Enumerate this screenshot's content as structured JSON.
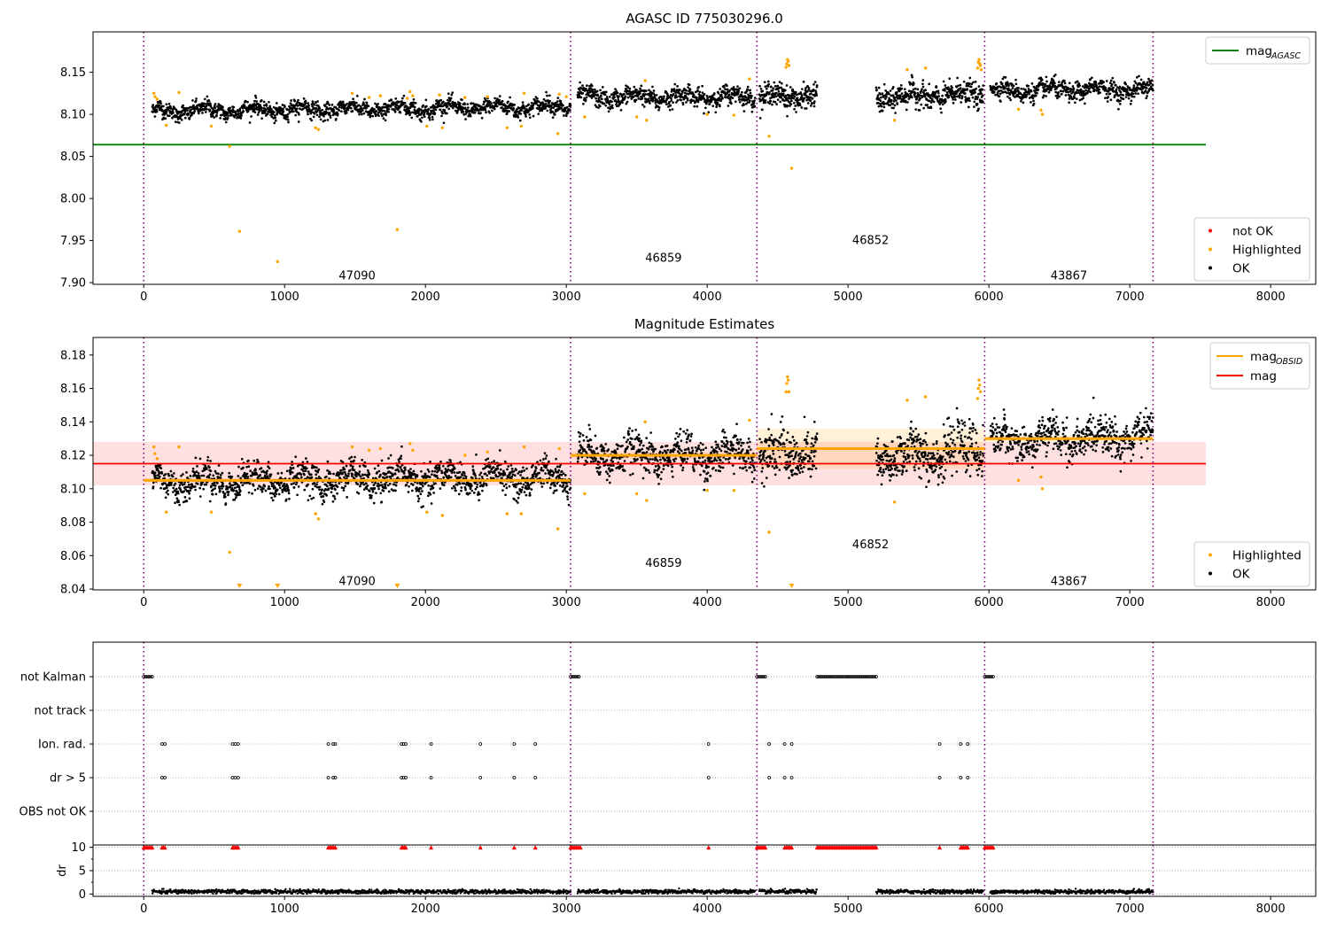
{
  "chart_data": [
    {
      "type": "scatter",
      "title": "AGASC ID 775030296.0",
      "xlabel": "",
      "ylabel": "",
      "xlim": [
        -360,
        8320
      ],
      "ylim": [
        7.898,
        8.198
      ],
      "xticks": [
        0,
        1000,
        2000,
        3000,
        4000,
        5000,
        6000,
        7000,
        8000
      ],
      "yticks": [
        7.9,
        7.95,
        8.0,
        8.05,
        8.1,
        8.15
      ],
      "ytick_labels": [
        "7.90",
        "7.95",
        "8.00",
        "8.05",
        "8.10",
        "8.15"
      ],
      "grid": false,
      "legend_upper": {
        "placement": "top-right",
        "entries": [
          {
            "label": "mag",
            "sub": "AGASC",
            "color": "#008000",
            "kind": "line"
          }
        ]
      },
      "legend_lower": {
        "placement": "bottom-right",
        "entries": [
          {
            "label": "not OK",
            "color": "#ff0000",
            "kind": "marker"
          },
          {
            "label": "Highlighted",
            "color": "#ffa500",
            "kind": "marker"
          },
          {
            "label": "OK",
            "color": "#000000",
            "kind": "marker"
          }
        ]
      },
      "agasc_mag": 8.064,
      "agasc_line_x": [
        -360,
        7540
      ],
      "obs_boundaries": [
        0,
        3030,
        4353,
        5970,
        7165
      ],
      "obs_labels": [
        {
          "text": "47090",
          "x": 1515,
          "y": 7.908
        },
        {
          "text": "46859",
          "x": 3690,
          "y": 7.929
        },
        {
          "text": "46852",
          "x": 5160,
          "y": 7.95
        },
        {
          "text": "43867",
          "x": 6568,
          "y": 7.908
        }
      ],
      "ok_segments": [
        {
          "x0": 60,
          "x1": 3030,
          "mean_start": 8.104,
          "mean_end": 8.109,
          "spread": 0.006,
          "n": 1500
        },
        {
          "x0": 3080,
          "x1": 4340,
          "mean_start": 8.12,
          "mean_end": 8.121,
          "spread": 0.007,
          "n": 650
        },
        {
          "x0": 4370,
          "x1": 4780,
          "mean_start": 8.121,
          "mean_end": 8.122,
          "spread": 0.009,
          "n": 230
        },
        {
          "x0": 5200,
          "x1": 5960,
          "mean_start": 8.12,
          "mean_end": 8.124,
          "spread": 0.009,
          "n": 420
        },
        {
          "x0": 6010,
          "x1": 7165,
          "mean_start": 8.128,
          "mean_end": 8.13,
          "spread": 0.007,
          "n": 600
        }
      ],
      "highlighted": [
        [
          72,
          8.125
        ],
        [
          80,
          8.121
        ],
        [
          95,
          8.118
        ],
        [
          160,
          8.087
        ],
        [
          250,
          8.126
        ],
        [
          480,
          8.086
        ],
        [
          610,
          8.062
        ],
        [
          680,
          7.961
        ],
        [
          950,
          7.925
        ],
        [
          1220,
          8.084
        ],
        [
          1240,
          8.082
        ],
        [
          1480,
          8.125
        ],
        [
          1600,
          8.12
        ],
        [
          1680,
          8.122
        ],
        [
          1800,
          7.963
        ],
        [
          1870,
          8.119
        ],
        [
          1890,
          8.127
        ],
        [
          1910,
          8.122
        ],
        [
          2010,
          8.086
        ],
        [
          2100,
          8.123
        ],
        [
          2120,
          8.084
        ],
        [
          2280,
          8.12
        ],
        [
          2440,
          8.121
        ],
        [
          2580,
          8.084
        ],
        [
          2680,
          8.086
        ],
        [
          2700,
          8.125
        ],
        [
          2940,
          8.077
        ],
        [
          2950,
          8.124
        ],
        [
          3000,
          8.121
        ],
        [
          3130,
          8.097
        ],
        [
          3500,
          8.097
        ],
        [
          3560,
          8.14
        ],
        [
          3570,
          8.093
        ],
        [
          4000,
          8.1
        ],
        [
          4190,
          8.099
        ],
        [
          4300,
          8.142
        ],
        [
          4440,
          8.074
        ],
        [
          4560,
          8.156
        ],
        [
          4565,
          8.16
        ],
        [
          4570,
          8.165
        ],
        [
          4575,
          8.163
        ],
        [
          4580,
          8.158
        ],
        [
          4600,
          8.036
        ],
        [
          5330,
          8.093
        ],
        [
          5420,
          8.153
        ],
        [
          5550,
          8.155
        ],
        [
          5920,
          8.155
        ],
        [
          5925,
          8.162
        ],
        [
          5930,
          8.165
        ],
        [
          5935,
          8.16
        ],
        [
          5940,
          8.158
        ],
        [
          5945,
          8.153
        ],
        [
          6210,
          8.106
        ],
        [
          6370,
          8.105
        ],
        [
          6380,
          8.1
        ]
      ]
    },
    {
      "type": "scatter",
      "title": "Magnitude Estimates",
      "xlabel": "",
      "ylabel": "",
      "xlim": [
        -360,
        8320
      ],
      "ylim": [
        8.0395,
        8.1905
      ],
      "xticks": [
        0,
        1000,
        2000,
        3000,
        4000,
        5000,
        6000,
        7000,
        8000
      ],
      "yticks": [
        8.04,
        8.06,
        8.08,
        8.1,
        8.12,
        8.14,
        8.16,
        8.18
      ],
      "ytick_labels": [
        "8.04",
        "8.06",
        "8.08",
        "8.10",
        "8.12",
        "8.14",
        "8.16",
        "8.18"
      ],
      "grid": false,
      "legend_upper": {
        "placement": "top-right",
        "entries": [
          {
            "label": "mag",
            "sub": "OBSID",
            "color": "#ffa500",
            "kind": "line"
          },
          {
            "label": "mag",
            "sub": "",
            "color": "#ff0000",
            "kind": "line"
          }
        ]
      },
      "legend_lower": {
        "placement": "bottom-right",
        "entries": [
          {
            "label": "Highlighted",
            "color": "#ffa500",
            "kind": "marker"
          },
          {
            "label": "OK",
            "color": "#000000",
            "kind": "marker"
          }
        ]
      },
      "mag_mean": 8.115,
      "mag_band": [
        8.102,
        8.128
      ],
      "mag_line_x": [
        -360,
        7540
      ],
      "obsid_mags": [
        {
          "x0": 0,
          "x1": 3030,
          "mag": 8.105,
          "band": [
            8.104,
            8.106
          ]
        },
        {
          "x0": 3030,
          "x1": 4353,
          "mag": 8.12,
          "band": [
            8.118,
            8.122
          ]
        },
        {
          "x0": 4353,
          "x1": 5970,
          "mag": 8.124,
          "band": [
            8.112,
            8.136
          ]
        },
        {
          "x0": 5970,
          "x1": 7165,
          "mag": 8.13,
          "band": [
            8.128,
            8.132
          ]
        }
      ],
      "obs_boundaries": [
        0,
        3030,
        4353,
        5970,
        7165
      ],
      "obs_labels": [
        {
          "text": "47090",
          "x": 1515,
          "y": 8.0445
        },
        {
          "text": "46859",
          "x": 3690,
          "y": 8.0555
        },
        {
          "text": "46852",
          "x": 5160,
          "y": 8.0665
        },
        {
          "text": "43867",
          "x": 6568,
          "y": 8.0445
        }
      ],
      "ok_segments": [
        {
          "x0": 60,
          "x1": 3030,
          "mean_start": 8.104,
          "mean_end": 8.107,
          "spread": 0.006,
          "n": 1500
        },
        {
          "x0": 3080,
          "x1": 4340,
          "mean_start": 8.12,
          "mean_end": 8.12,
          "spread": 0.007,
          "n": 650
        },
        {
          "x0": 4370,
          "x1": 4780,
          "mean_start": 8.121,
          "mean_end": 8.121,
          "spread": 0.009,
          "n": 230
        },
        {
          "x0": 5200,
          "x1": 5960,
          "mean_start": 8.118,
          "mean_end": 8.124,
          "spread": 0.009,
          "n": 420
        },
        {
          "x0": 6010,
          "x1": 7165,
          "mean_start": 8.128,
          "mean_end": 8.132,
          "spread": 0.007,
          "n": 600
        }
      ],
      "highlighted": [
        [
          72,
          8.125
        ],
        [
          80,
          8.121
        ],
        [
          95,
          8.118
        ],
        [
          160,
          8.086
        ],
        [
          250,
          8.125
        ],
        [
          480,
          8.086
        ],
        [
          610,
          8.062
        ],
        [
          1220,
          8.085
        ],
        [
          1240,
          8.082
        ],
        [
          1480,
          8.125
        ],
        [
          1600,
          8.123
        ],
        [
          1680,
          8.124
        ],
        [
          1890,
          8.127
        ],
        [
          1910,
          8.123
        ],
        [
          2010,
          8.086
        ],
        [
          2120,
          8.084
        ],
        [
          2280,
          8.12
        ],
        [
          2440,
          8.122
        ],
        [
          2580,
          8.085
        ],
        [
          2680,
          8.085
        ],
        [
          2700,
          8.125
        ],
        [
          2940,
          8.076
        ],
        [
          2950,
          8.124
        ],
        [
          3130,
          8.097
        ],
        [
          3500,
          8.097
        ],
        [
          3560,
          8.14
        ],
        [
          3570,
          8.093
        ],
        [
          4000,
          8.099
        ],
        [
          4190,
          8.099
        ],
        [
          4300,
          8.141
        ],
        [
          4440,
          8.074
        ],
        [
          4560,
          8.158
        ],
        [
          4565,
          8.163
        ],
        [
          4570,
          8.167
        ],
        [
          4575,
          8.165
        ],
        [
          4580,
          8.158
        ],
        [
          5330,
          8.092
        ],
        [
          5420,
          8.153
        ],
        [
          5550,
          8.155
        ],
        [
          5920,
          8.154
        ],
        [
          5925,
          8.16
        ],
        [
          5930,
          8.165
        ],
        [
          5935,
          8.162
        ],
        [
          5940,
          8.158
        ],
        [
          6210,
          8.105
        ],
        [
          6370,
          8.107
        ],
        [
          6380,
          8.1
        ]
      ],
      "clipped_low": [
        680,
        950,
        1800,
        4600
      ]
    },
    {
      "type": "scatter",
      "title": "",
      "xlabel": "",
      "ylabel": "",
      "xlim": [
        -360,
        8320
      ],
      "flag_rows": [
        "not Kalman",
        "not track",
        "Ion. rad.",
        "dr > 5",
        "OBS not OK"
      ],
      "flag_points": {
        "not Kalman": [
          [
            0,
            60
          ],
          [
            3030,
            3100
          ],
          [
            4353,
            4420
          ],
          [
            4780,
            5200
          ],
          [
            5970,
            6030
          ]
        ],
        "not track": [],
        "Ion. rad.": [
          130,
          150,
          630,
          650,
          670,
          1310,
          1345,
          1360,
          1830,
          1845,
          1860,
          2040,
          2390,
          2630,
          2780,
          4010,
          4440,
          4550,
          4600,
          5650,
          5800,
          5850
        ],
        "dr > 5": [
          130,
          150,
          630,
          650,
          670,
          1310,
          1345,
          1360,
          1830,
          1845,
          1860,
          2040,
          2390,
          2630,
          2780,
          4010,
          4440,
          4550,
          4600,
          5650,
          5800,
          5850
        ],
        "OBS not OK": []
      },
      "grid": true
    },
    {
      "type": "scatter",
      "title": "",
      "xlabel": "",
      "ylabel": "dr",
      "xlim": [
        -360,
        8320
      ],
      "ylim": [
        -0.5,
        10.5
      ],
      "xticks": [
        0,
        1000,
        2000,
        3000,
        4000,
        5000,
        6000,
        7000,
        8000
      ],
      "yticks": [
        0,
        5,
        10
      ],
      "ytick_labels": [
        "0",
        "5",
        "10"
      ],
      "grid": true,
      "dr_segments": [
        [
          60,
          3030
        ],
        [
          3080,
          4340
        ],
        [
          4370,
          4780
        ],
        [
          5200,
          5960
        ],
        [
          6010,
          7165
        ]
      ],
      "dr_typical": 0.5,
      "dr_capped_value": 10,
      "dr_capped_x": [
        [
          0,
          60
        ],
        [
          130,
          150
        ],
        [
          630,
          670
        ],
        [
          1310,
          1360
        ],
        [
          1830,
          1860
        ],
        [
          2040,
          2040
        ],
        [
          2390,
          2390
        ],
        [
          2630,
          2630
        ],
        [
          2780,
          2780
        ],
        [
          3030,
          3100
        ],
        [
          4010,
          4010
        ],
        [
          4353,
          4420
        ],
        [
          4550,
          4600
        ],
        [
          4780,
          5200
        ],
        [
          5650,
          5650
        ],
        [
          5800,
          5850
        ],
        [
          5970,
          6030
        ]
      ]
    }
  ]
}
